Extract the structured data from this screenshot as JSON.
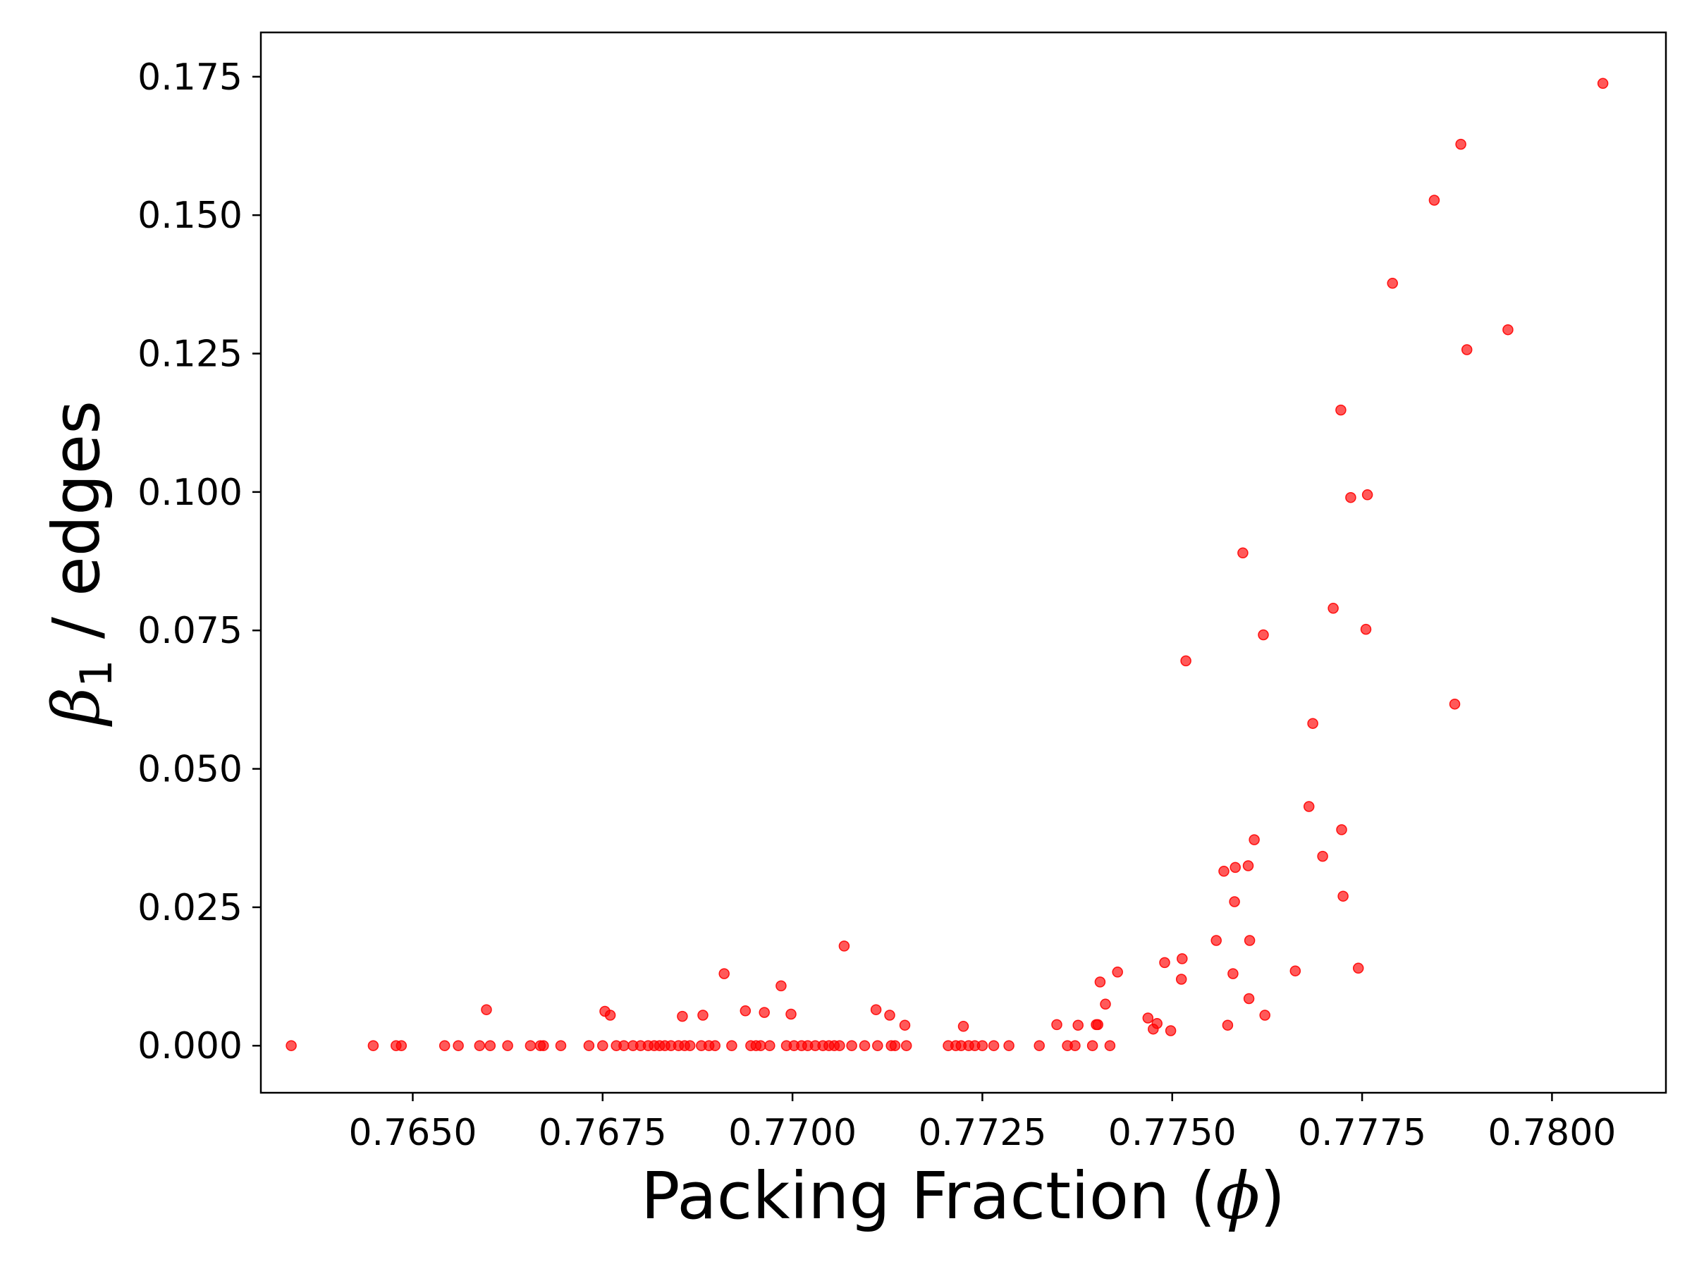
{
  "chart_data": {
    "type": "scatter",
    "title": "",
    "xlabel": "Packing Fraction (ϕ)",
    "xlabel_parts": {
      "prefix": "Packing Fraction (",
      "symbol": "ϕ",
      "suffix": ")"
    },
    "ylabel": "β1 / edges",
    "ylabel_parts": {
      "symbol": "β",
      "subscript": "1",
      "suffix": " / edges"
    },
    "xlim": [
      0.763,
      0.7815
    ],
    "ylim": [
      -0.0085,
      0.183
    ],
    "xticks": [
      0.765,
      0.7675,
      0.77,
      0.7725,
      0.775,
      0.7775,
      0.78
    ],
    "xtick_labels": [
      "0.7650",
      "0.7675",
      "0.7700",
      "0.7725",
      "0.7750",
      "0.7775",
      "0.7800"
    ],
    "yticks": [
      0.0,
      0.025,
      0.05,
      0.075,
      0.1,
      0.125,
      0.15,
      0.175
    ],
    "ytick_labels": [
      "0.000",
      "0.025",
      "0.050",
      "0.075",
      "0.100",
      "0.125",
      "0.150",
      "0.175"
    ],
    "grid": false,
    "legend": "none",
    "marker_color": "#ff0000",
    "marker_opacity": 0.65,
    "series": [
      {
        "points": [
          [
            0.7634,
            0.0
          ],
          [
            0.76448,
            0.0
          ],
          [
            0.76478,
            0.0
          ],
          [
            0.76485,
            0.0
          ],
          [
            0.76542,
            0.0
          ],
          [
            0.7656,
            0.0
          ],
          [
            0.76588,
            0.0
          ],
          [
            0.76597,
            0.0065
          ],
          [
            0.76602,
            0.0
          ],
          [
            0.76625,
            0.0
          ],
          [
            0.76655,
            0.0
          ],
          [
            0.76668,
            0.0
          ],
          [
            0.76672,
            0.0
          ],
          [
            0.76695,
            0.0
          ],
          [
            0.76732,
            0.0
          ],
          [
            0.7675,
            0.0
          ],
          [
            0.76753,
            0.0062
          ],
          [
            0.7676,
            0.0055
          ],
          [
            0.76768,
            0.0
          ],
          [
            0.76778,
            0.0
          ],
          [
            0.7679,
            0.0
          ],
          [
            0.768,
            0.0
          ],
          [
            0.7681,
            0.0
          ],
          [
            0.76818,
            0.0
          ],
          [
            0.76825,
            0.0
          ],
          [
            0.76832,
            0.0
          ],
          [
            0.7684,
            0.0
          ],
          [
            0.7685,
            0.0
          ],
          [
            0.76855,
            0.0053
          ],
          [
            0.76858,
            0.0
          ],
          [
            0.76865,
            0.0
          ],
          [
            0.7688,
            0.0
          ],
          [
            0.76882,
            0.0055
          ],
          [
            0.7689,
            0.0
          ],
          [
            0.76898,
            0.0
          ],
          [
            0.7691,
            0.013
          ],
          [
            0.7692,
            0.0
          ],
          [
            0.76938,
            0.0063
          ],
          [
            0.76945,
            0.0
          ],
          [
            0.76952,
            0.0
          ],
          [
            0.76958,
            0.0
          ],
          [
            0.76963,
            0.006
          ],
          [
            0.7697,
            0.0
          ],
          [
            0.76985,
            0.0108
          ],
          [
            0.76992,
            0.0
          ],
          [
            0.76998,
            0.0057
          ],
          [
            0.77002,
            0.0
          ],
          [
            0.77012,
            0.0
          ],
          [
            0.7702,
            0.0
          ],
          [
            0.7703,
            0.0
          ],
          [
            0.7704,
            0.0
          ],
          [
            0.77048,
            0.0
          ],
          [
            0.77055,
            0.0
          ],
          [
            0.77062,
            0.0
          ],
          [
            0.77068,
            0.018
          ],
          [
            0.77078,
            0.0
          ],
          [
            0.77095,
            0.0
          ],
          [
            0.7711,
            0.0065
          ],
          [
            0.77112,
            0.0
          ],
          [
            0.77128,
            0.0055
          ],
          [
            0.7713,
            0.0
          ],
          [
            0.77135,
            0.0
          ],
          [
            0.77148,
            0.0037
          ],
          [
            0.7715,
            0.0
          ],
          [
            0.77205,
            0.0
          ],
          [
            0.77215,
            0.0
          ],
          [
            0.77222,
            0.0
          ],
          [
            0.77225,
            0.0035
          ],
          [
            0.77232,
            0.0
          ],
          [
            0.7724,
            0.0
          ],
          [
            0.7725,
            0.0
          ],
          [
            0.77265,
            0.0
          ],
          [
            0.77285,
            0.0
          ],
          [
            0.77325,
            0.0
          ],
          [
            0.77348,
            0.0038
          ],
          [
            0.77362,
            0.0
          ],
          [
            0.77372,
            0.0
          ],
          [
            0.77376,
            0.0037
          ],
          [
            0.77395,
            0.0
          ],
          [
            0.774,
            0.0038
          ],
          [
            0.77402,
            0.0038
          ],
          [
            0.77405,
            0.0115
          ],
          [
            0.77412,
            0.0075
          ],
          [
            0.77418,
            0.0
          ],
          [
            0.77428,
            0.0133
          ],
          [
            0.77468,
            0.005
          ],
          [
            0.77475,
            0.003
          ],
          [
            0.7748,
            0.004
          ],
          [
            0.7749,
            0.015
          ],
          [
            0.77498,
            0.0027
          ],
          [
            0.77512,
            0.012
          ],
          [
            0.77513,
            0.0157
          ],
          [
            0.77518,
            0.0695
          ],
          [
            0.77558,
            0.019
          ],
          [
            0.77568,
            0.0315
          ],
          [
            0.77573,
            0.0037
          ],
          [
            0.7758,
            0.013
          ],
          [
            0.77582,
            0.026
          ],
          [
            0.77583,
            0.0322
          ],
          [
            0.77593,
            0.089
          ],
          [
            0.776,
            0.0325
          ],
          [
            0.77601,
            0.0085
          ],
          [
            0.77602,
            0.019
          ],
          [
            0.77608,
            0.0372
          ],
          [
            0.7762,
            0.0742
          ],
          [
            0.77622,
            0.0055
          ],
          [
            0.77662,
            0.0135
          ],
          [
            0.7768,
            0.0432
          ],
          [
            0.77685,
            0.0582
          ],
          [
            0.77698,
            0.0342
          ],
          [
            0.77712,
            0.079
          ],
          [
            0.77722,
            0.1148
          ],
          [
            0.77723,
            0.039
          ],
          [
            0.77725,
            0.027
          ],
          [
            0.77735,
            0.099
          ],
          [
            0.77745,
            0.014
          ],
          [
            0.77755,
            0.0752
          ],
          [
            0.77757,
            0.0995
          ],
          [
            0.7779,
            0.1377
          ],
          [
            0.77845,
            0.1527
          ],
          [
            0.77872,
            0.0617
          ],
          [
            0.7788,
            0.1628
          ],
          [
            0.77888,
            0.1257
          ],
          [
            0.77942,
            0.1293
          ],
          [
            0.78067,
            0.1738
          ]
        ]
      }
    ]
  }
}
